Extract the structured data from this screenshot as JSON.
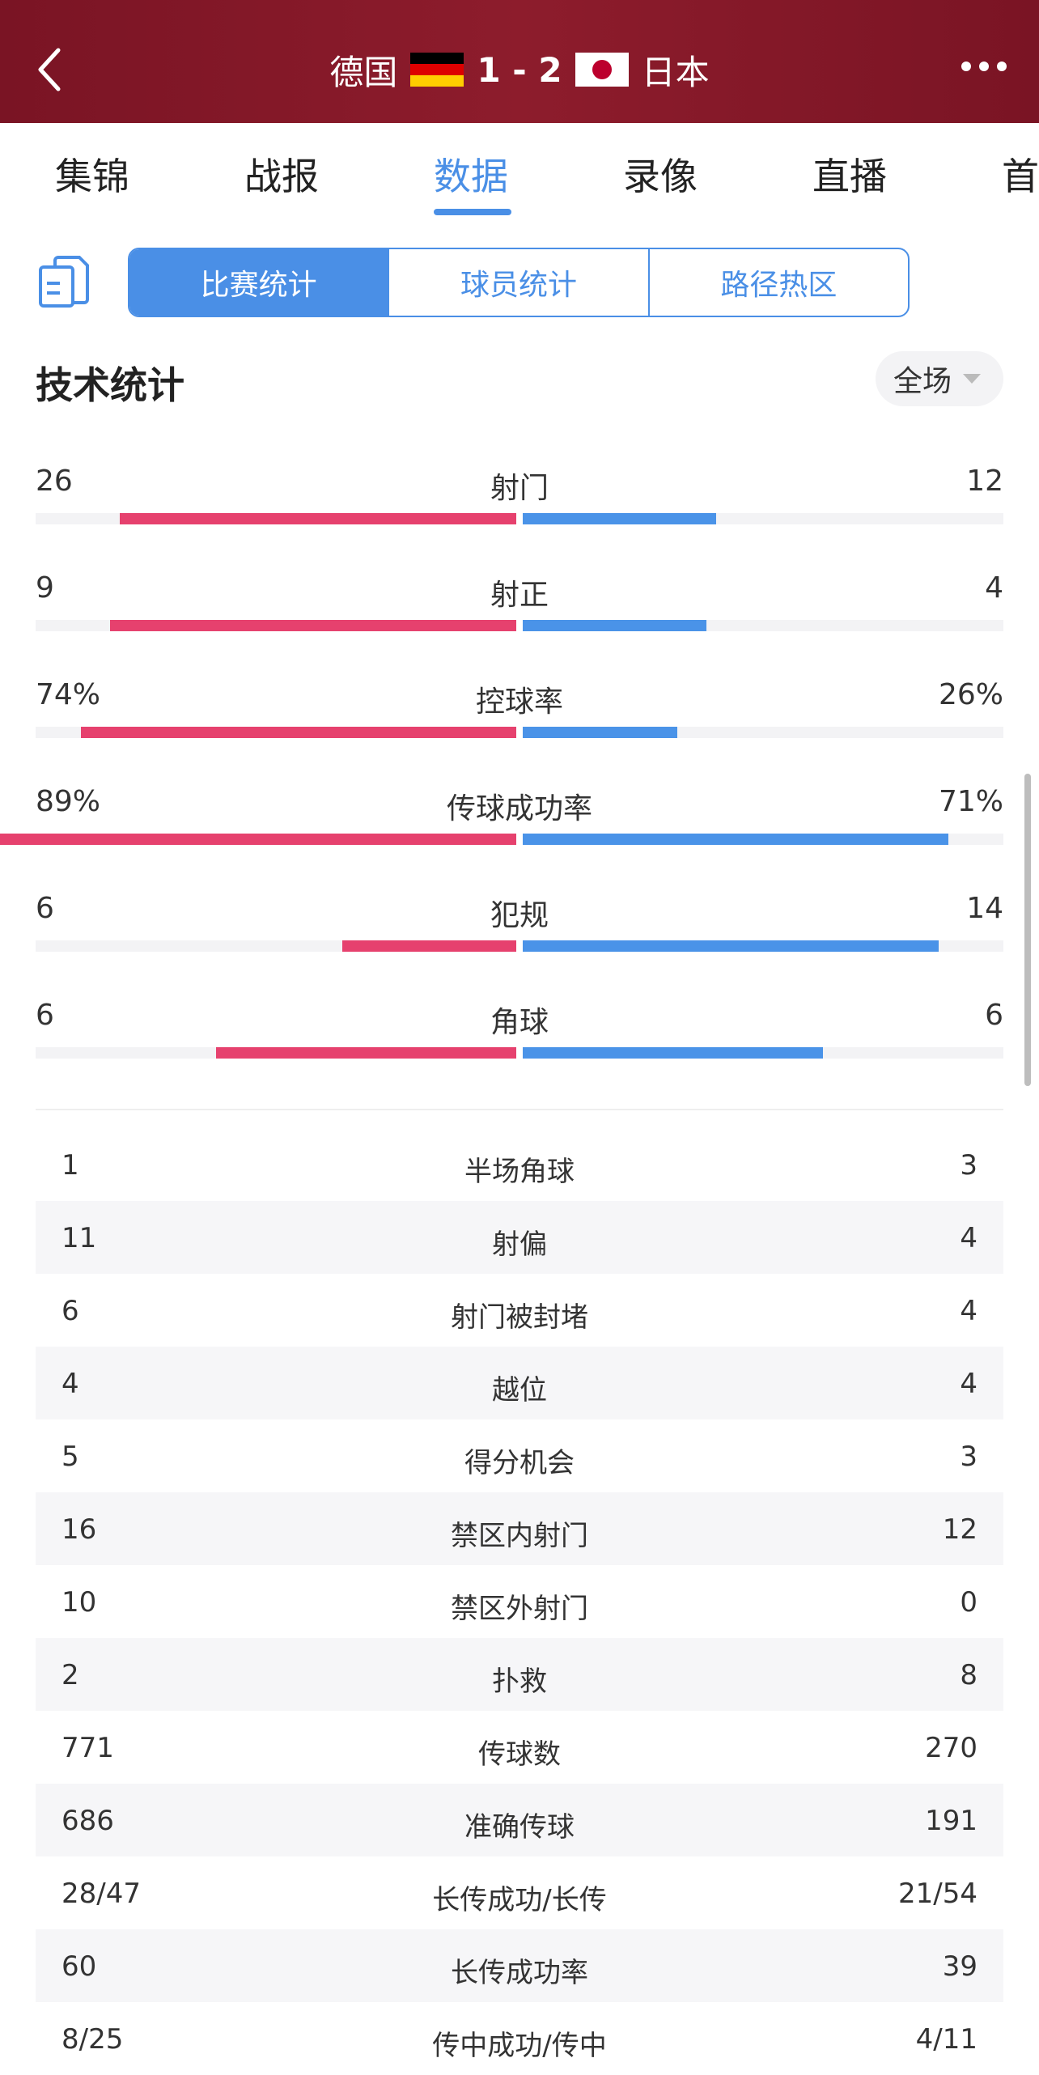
{
  "header": {
    "home_team": "德国",
    "away_team": "日本",
    "score": "1 - 2",
    "back_icon": "chevron-left-icon",
    "more_icon": "more-horizontal-icon"
  },
  "tabs": [
    {
      "label": "集锦"
    },
    {
      "label": "战报"
    },
    {
      "label": "数据",
      "active": true
    },
    {
      "label": "录像"
    },
    {
      "label": "直播"
    },
    {
      "label": "首"
    }
  ],
  "segments": [
    {
      "label": "比赛统计",
      "active": true
    },
    {
      "label": "球员统计"
    },
    {
      "label": "路径热区"
    }
  ],
  "section_title": "技术统计",
  "filter_label": "全场",
  "colors": {
    "home": "#e6416e",
    "away": "#4a93e8",
    "accent": "#4a8fe6",
    "header": "#8d1c2c"
  },
  "bar_stats": [
    {
      "name": "射门",
      "home": "26",
      "away": "12",
      "home_ratio": 0.41,
      "away_ratio": 0.2
    },
    {
      "name": "射正",
      "home": "9",
      "away": "4",
      "home_ratio": 0.42,
      "away_ratio": 0.19
    },
    {
      "name": "控球率",
      "home": "74%",
      "away": "26%",
      "home_ratio": 0.45,
      "away_ratio": 0.16
    },
    {
      "name": "传球成功率",
      "home": "89%",
      "away": "71%",
      "home_ratio": 0.55,
      "away_ratio": 0.44
    },
    {
      "name": "犯规",
      "home": "6",
      "away": "14",
      "home_ratio": 0.18,
      "away_ratio": 0.43
    },
    {
      "name": "角球",
      "home": "6",
      "away": "6",
      "home_ratio": 0.31,
      "away_ratio": 0.31
    }
  ],
  "table_stats": [
    {
      "name": "半场角球",
      "home": "1",
      "away": "3"
    },
    {
      "name": "射偏",
      "home": "11",
      "away": "4"
    },
    {
      "name": "射门被封堵",
      "home": "6",
      "away": "4"
    },
    {
      "name": "越位",
      "home": "4",
      "away": "4"
    },
    {
      "name": "得分机会",
      "home": "5",
      "away": "3"
    },
    {
      "name": "禁区内射门",
      "home": "16",
      "away": "12"
    },
    {
      "name": "禁区外射门",
      "home": "10",
      "away": "0"
    },
    {
      "name": "扑救",
      "home": "2",
      "away": "8"
    },
    {
      "name": "传球数",
      "home": "771",
      "away": "270"
    },
    {
      "name": "准确传球",
      "home": "686",
      "away": "191"
    },
    {
      "name": "长传成功/长传",
      "home": "28/47",
      "away": "21/54"
    },
    {
      "name": "长传成功率",
      "home": "60",
      "away": "39"
    },
    {
      "name": "传中成功/传中",
      "home": "8/25",
      "away": "4/11"
    }
  ]
}
